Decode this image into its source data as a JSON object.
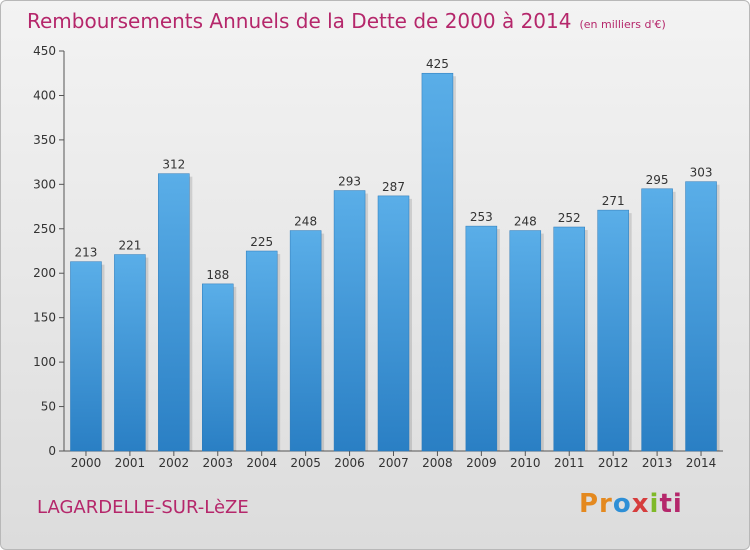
{
  "title": "Remboursements Annuels de la Dette de 2000 à 2014",
  "subtitle": "(en milliers d'€)",
  "footer": {
    "commune": "LAGARDELLE-SUR-LèZE"
  },
  "logo": {
    "parts": [
      "Pr",
      "o",
      "x",
      "i",
      "ti"
    ]
  },
  "colors": {
    "title": "#b5276b",
    "bar_top": "#5aaee8",
    "bar_bottom": "#2a7fc4"
  },
  "chart_data": {
    "type": "bar",
    "title": "Remboursements Annuels de la Dette de 2000 à 2014",
    "subtitle": "(en milliers d'€)",
    "xlabel": "",
    "ylabel": "",
    "ylim": [
      0,
      450
    ],
    "yticks": [
      0,
      50,
      100,
      150,
      200,
      250,
      300,
      350,
      400,
      450
    ],
    "grid": false,
    "categories": [
      "2000",
      "2001",
      "2002",
      "2003",
      "2004",
      "2005",
      "2006",
      "2007",
      "2008",
      "2009",
      "2010",
      "2011",
      "2012",
      "2013",
      "2014"
    ],
    "values": [
      213,
      221,
      312,
      188,
      225,
      248,
      293,
      287,
      425,
      253,
      248,
      252,
      271,
      295,
      303
    ]
  }
}
